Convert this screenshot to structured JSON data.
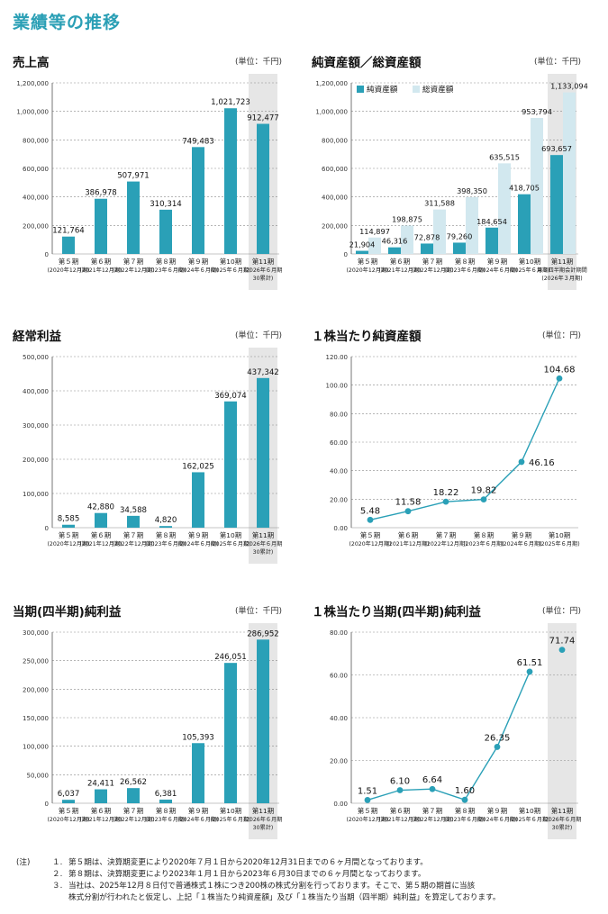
{
  "page": {
    "title": "業績等の推移"
  },
  "chart_data": [
    {
      "id": "sales",
      "type": "bar",
      "title": "売上高",
      "unit": "(単位：千円)",
      "categories": [
        [
          "第５期",
          "(2020年12月期)"
        ],
        [
          "第６期",
          "(2021年12月期)"
        ],
        [
          "第７期",
          "(2022年12月期)"
        ],
        [
          "第８期",
          "(2023年６月期)"
        ],
        [
          "第９期",
          "(2024年６月期)"
        ],
        [
          "第10期",
          "(2025年６月期)"
        ],
        [
          "第11期",
          "(2026年６月期",
          "30累計)"
        ]
      ],
      "series": [
        {
          "values": [
            121764,
            386978,
            507971,
            310314,
            749483,
            1021723,
            912477
          ]
        }
      ],
      "value_labels": [
        "121,764",
        "386,978",
        "507,971",
        "310,314",
        "749,483",
        "1,021,723",
        "912,477"
      ],
      "ylim": [
        0,
        1200000
      ],
      "yticks": [
        "0",
        "200,000",
        "400,000",
        "600,000",
        "800,000",
        "1,000,000",
        "1,200,000"
      ],
      "shaded_category": 6,
      "colors": {
        "bar": "#2aa0b7",
        "shade": "#e6e6e6"
      }
    },
    {
      "id": "assets",
      "type": "bar",
      "title": "純資産額／総資産額",
      "unit": "(単位：千円)",
      "categories": [
        [
          "第５期",
          "(2020年12月期)"
        ],
        [
          "第６期",
          "(2021年12月期)"
        ],
        [
          "第７期",
          "(2022年12月期)"
        ],
        [
          "第８期",
          "(2023年６月期)"
        ],
        [
          "第９期",
          "(2024年６月期)"
        ],
        [
          "第10期",
          "(2025年６月期)"
        ],
        [
          "第11期",
          "第３四半期会計期間",
          "(2026年３月期)"
        ]
      ],
      "series": [
        {
          "name": "純資産額",
          "values": [
            21904,
            46316,
            72878,
            79260,
            184654,
            418705,
            693657
          ],
          "value_labels": [
            "21,904",
            "46,316",
            "72,878",
            "79,260",
            "184,654",
            "418,705",
            "693,657"
          ]
        },
        {
          "name": "総資産額",
          "values": [
            114897,
            198875,
            311588,
            398350,
            635515,
            953794,
            1133094
          ],
          "value_labels": [
            "114,897",
            "198,875",
            "311,588",
            "398,350",
            "635,515",
            "953,794",
            "1,133,094"
          ]
        }
      ],
      "ylim": [
        0,
        1200000
      ],
      "yticks": [
        "0",
        "200,000",
        "400,000",
        "600,000",
        "800,000",
        "1,000,000",
        "1,200,000"
      ],
      "shaded_category": 6,
      "legend": "top-left",
      "colors": {
        "net": "#2aa0b7",
        "total": "#d2e8ef",
        "shade": "#e6e6e6"
      }
    },
    {
      "id": "ordinary",
      "type": "bar",
      "title": "経常利益",
      "unit": "(単位：千円)",
      "categories": [
        [
          "第５期",
          "(2020年12月期)"
        ],
        [
          "第６期",
          "(2021年12月期)"
        ],
        [
          "第７期",
          "(2022年12月期)"
        ],
        [
          "第８期",
          "(2023年６月期)"
        ],
        [
          "第９期",
          "(2024年６月期)"
        ],
        [
          "第10期",
          "(2025年６月期)"
        ],
        [
          "第11期",
          "(2026年６月期",
          "30累計)"
        ]
      ],
      "series": [
        {
          "values": [
            8585,
            42880,
            34588,
            4820,
            162025,
            369074,
            437342
          ]
        }
      ],
      "value_labels": [
        "8,585",
        "42,880",
        "34,588",
        "4,820",
        "162,025",
        "369,074",
        "437,342"
      ],
      "ylim": [
        0,
        500000
      ],
      "yticks": [
        "0",
        "100,000",
        "200,000",
        "300,000",
        "400,000",
        "500,000"
      ],
      "shaded_category": 6,
      "colors": {
        "bar": "#2aa0b7",
        "shade": "#e6e6e6"
      }
    },
    {
      "id": "bps",
      "type": "line",
      "title": "１株当たり純資産額",
      "unit": "(単位：円)",
      "categories": [
        [
          "第５期",
          "(2020年12月期)"
        ],
        [
          "第６期",
          "(2021年12月期)"
        ],
        [
          "第７期",
          "(2022年12月期)"
        ],
        [
          "第８期",
          "(2023年６月期)"
        ],
        [
          "第９期",
          "(2024年６月期)"
        ],
        [
          "第10期",
          "(2025年６月期)"
        ]
      ],
      "series": [
        {
          "values": [
            5.48,
            11.58,
            18.22,
            19.82,
            46.16,
            104.68
          ]
        }
      ],
      "value_labels": [
        "5.48",
        "11.58",
        "18.22",
        "19.82",
        "46.16",
        "104.68"
      ],
      "ylim": [
        0,
        120
      ],
      "yticks": [
        "0.00",
        "20.00",
        "40.00",
        "60.00",
        "80.00",
        "100.00",
        "120.00"
      ],
      "shaded_category": null,
      "colors": {
        "line": "#2aa0b7",
        "shade": "#e6e6e6"
      }
    },
    {
      "id": "netincome",
      "type": "bar",
      "title": "当期(四半期)純利益",
      "unit": "(単位：千円)",
      "categories": [
        [
          "第５期",
          "(2020年12月期)"
        ],
        [
          "第６期",
          "(2021年12月期)"
        ],
        [
          "第７期",
          "(2022年12月期)"
        ],
        [
          "第８期",
          "(2023年６月期)"
        ],
        [
          "第９期",
          "(2024年６月期)"
        ],
        [
          "第10期",
          "(2025年６月期)"
        ],
        [
          "第11期",
          "(2026年６月期",
          "30累計)"
        ]
      ],
      "series": [
        {
          "values": [
            6037,
            24411,
            26562,
            6381,
            105393,
            246051,
            286952
          ]
        }
      ],
      "value_labels": [
        "6,037",
        "24,411",
        "26,562",
        "6,381",
        "105,393",
        "246,051",
        "286,952"
      ],
      "ylim": [
        0,
        300000
      ],
      "yticks": [
        "0",
        "50,000",
        "100,000",
        "150,000",
        "200,000",
        "250,000",
        "300,000"
      ],
      "shaded_category": 6,
      "colors": {
        "bar": "#2aa0b7",
        "shade": "#e6e6e6"
      }
    },
    {
      "id": "eps",
      "type": "line",
      "title": "１株当たり当期(四半期)純利益",
      "unit": "(単位：円)",
      "categories": [
        [
          "第５期",
          "(2020年12月期)"
        ],
        [
          "第６期",
          "(2021年12月期)"
        ],
        [
          "第７期",
          "(2022年12月期)"
        ],
        [
          "第８期",
          "(2023年６月期)"
        ],
        [
          "第９期",
          "(2024年６月期)"
        ],
        [
          "第10期",
          "(2025年６月期)"
        ],
        [
          "第11期",
          "(2026年６月期",
          "30累計)"
        ]
      ],
      "series": [
        {
          "values": [
            1.51,
            6.1,
            6.64,
            1.6,
            26.35,
            61.51,
            71.74
          ]
        }
      ],
      "value_labels": [
        "1.51",
        "6.10",
        "6.64",
        "1.60",
        "26.35",
        "61.51",
        "71.74"
      ],
      "connected_points": 6,
      "ylim": [
        0,
        80
      ],
      "yticks": [
        "0.00",
        "20.00",
        "40.00",
        "60.00",
        "80.00"
      ],
      "shaded_category": 6,
      "colors": {
        "line": "#2aa0b7",
        "shade": "#e6e6e6"
      }
    }
  ],
  "notes": [
    {
      "prefix": "(注)",
      "num": "１.",
      "text": "第５期は、決算期変更により2020年７月１日から2020年12月31日までの６ヶ月間となっております。"
    },
    {
      "prefix": "",
      "num": "２.",
      "text": "第８期は、決算期変更により2023年１月１日から2023年６月30日までの６ヶ月間となっております。"
    },
    {
      "prefix": "",
      "num": "３.",
      "text": "当社は、2025年12月８日付で普通株式１株につき200株の株式分割を行っております。そこで、第５期の期首に当該"
    },
    {
      "prefix": "",
      "num": "",
      "text": "株式分割が行われたと仮定し、上記「１株当たり純資産額」及び「１株当たり当期（四半期）純利益」を算定しております。"
    }
  ]
}
